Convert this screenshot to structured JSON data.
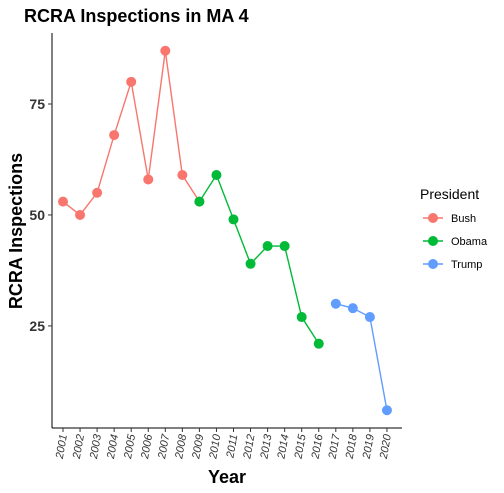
{
  "chart_data": {
    "type": "line",
    "title": "RCRA Inspections in MA 4",
    "xlabel": "Year",
    "ylabel": "RCRA Inspections",
    "y_ticks": [
      25,
      50,
      75
    ],
    "ylim": [
      2,
      91
    ],
    "x": [
      "2001",
      "2002",
      "2003",
      "2004",
      "2005",
      "2006",
      "2007",
      "2008",
      "2009",
      "2010",
      "2011",
      "2012",
      "2013",
      "2014",
      "2015",
      "2016",
      "2017",
      "2018",
      "2019",
      "2020"
    ],
    "legend": {
      "title": "President",
      "placement": "right"
    },
    "grid": false,
    "series": [
      {
        "name": "Bush",
        "color": "#F8766D",
        "x": [
          "2001",
          "2002",
          "2003",
          "2004",
          "2005",
          "2006",
          "2007",
          "2008",
          "2009"
        ],
        "values": [
          53,
          50,
          55,
          68,
          80,
          58,
          87,
          59,
          53
        ]
      },
      {
        "name": "Obama",
        "color": "#00BA38",
        "x": [
          "2009",
          "2010",
          "2011",
          "2012",
          "2013",
          "2014",
          "2015",
          "2016"
        ],
        "values": [
          53,
          59,
          49,
          39,
          43,
          43,
          27,
          21
        ]
      },
      {
        "name": "Trump",
        "color": "#619CFF",
        "x": [
          "2017",
          "2018",
          "2019",
          "2020"
        ],
        "values": [
          30,
          29,
          27,
          6
        ]
      }
    ]
  }
}
